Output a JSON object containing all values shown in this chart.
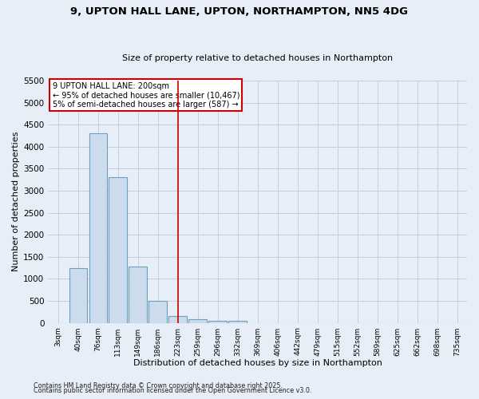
{
  "title": "9, UPTON HALL LANE, UPTON, NORTHAMPTON, NN5 4DG",
  "subtitle": "Size of property relative to detached houses in Northampton",
  "xlabel": "Distribution of detached houses by size in Northampton",
  "ylabel": "Number of detached properties",
  "bar_values": [
    0,
    1250,
    4300,
    3300,
    1270,
    500,
    150,
    75,
    50,
    50,
    0,
    0,
    0,
    0,
    0,
    0,
    0,
    0,
    0,
    0,
    0
  ],
  "bin_labels": [
    "3sqm",
    "40sqm",
    "76sqm",
    "113sqm",
    "149sqm",
    "186sqm",
    "223sqm",
    "259sqm",
    "296sqm",
    "332sqm",
    "369sqm",
    "406sqm",
    "442sqm",
    "479sqm",
    "515sqm",
    "552sqm",
    "589sqm",
    "625sqm",
    "662sqm",
    "698sqm",
    "735sqm"
  ],
  "bar_color": "#cddcec",
  "bar_edge_color": "#6a9fc0",
  "grid_color": "#c5cfe0",
  "bg_color": "#e8eef8",
  "plot_bg_color": "#e8eef8",
  "red_line_index": 6,
  "annotation_text": "9 UPTON HALL LANE: 200sqm\n← 95% of detached houses are smaller (10,467)\n5% of semi-detached houses are larger (587) →",
  "annotation_box_color": "#ffffff",
  "annotation_border_color": "#cc0000",
  "ylim": [
    0,
    5500
  ],
  "yticks": [
    0,
    500,
    1000,
    1500,
    2000,
    2500,
    3000,
    3500,
    4000,
    4500,
    5000,
    5500
  ],
  "footer1": "Contains HM Land Registry data © Crown copyright and database right 2025.",
  "footer2": "Contains public sector information licensed under the Open Government Licence v3.0."
}
